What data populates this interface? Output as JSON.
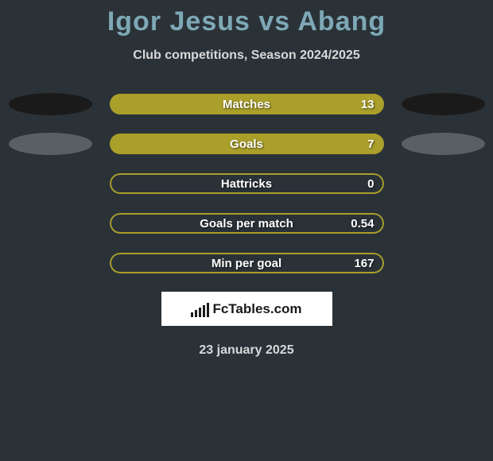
{
  "title": "Igor Jesus vs Abang",
  "subtitle": "Club competitions, Season 2024/2025",
  "date_text": "23 january 2025",
  "logo_text": "FcTables.com",
  "colors": {
    "background": "#2a3238",
    "title_color": "#7ea8b5",
    "text_color": "#d8d8d8",
    "ellipse_dark": "#1a1a1a",
    "ellipse_gray": "#5a5f63",
    "pill_fill": "#aa9f2a",
    "pill_border": "#aa9f2a",
    "logo_bg": "#ffffff"
  },
  "stats": [
    {
      "label": "Matches",
      "value": "13",
      "fill_percent": 100,
      "show_left_ellipse": true,
      "show_right_ellipse": true,
      "left_ellipse_color": "#1a1a1a",
      "right_ellipse_color": "#1a1a1a"
    },
    {
      "label": "Goals",
      "value": "7",
      "fill_percent": 100,
      "show_left_ellipse": true,
      "show_right_ellipse": true,
      "left_ellipse_color": "#5a5f63",
      "right_ellipse_color": "#5a5f63"
    },
    {
      "label": "Hattricks",
      "value": "0",
      "fill_percent": 0,
      "show_left_ellipse": false,
      "show_right_ellipse": false
    },
    {
      "label": "Goals per match",
      "value": "0.54",
      "fill_percent": 0,
      "show_left_ellipse": false,
      "show_right_ellipse": false
    },
    {
      "label": "Min per goal",
      "value": "167",
      "fill_percent": 0,
      "show_left_ellipse": false,
      "show_right_ellipse": false
    }
  ],
  "pill_width": 345,
  "logo_bars_heights": [
    6,
    9,
    12,
    15,
    18
  ]
}
